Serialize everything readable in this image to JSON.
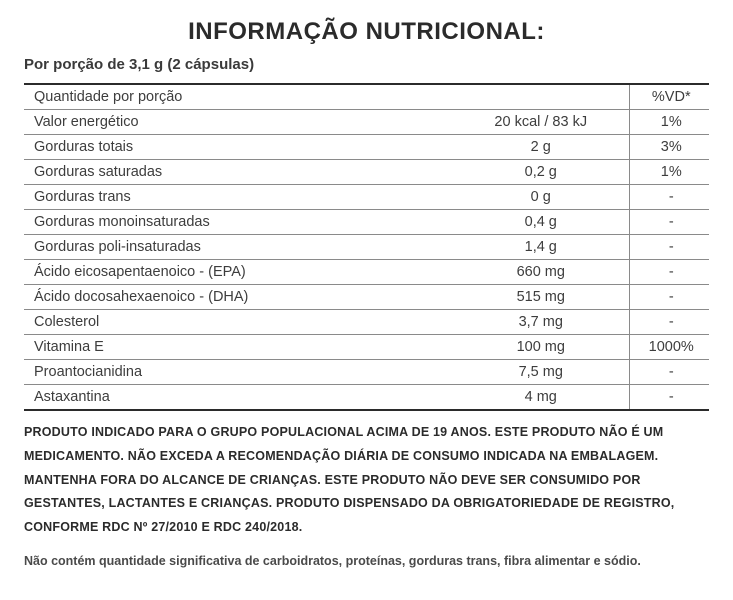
{
  "title": "INFORMAÇÃO NUTRICIONAL:",
  "serving": "Por porção de 3,1 g (2 cápsulas)",
  "table": {
    "header": {
      "label": "Quantidade por porção",
      "vd": "%VD*"
    },
    "rows": [
      {
        "label": "Valor energético",
        "value": "20 kcal / 83 kJ",
        "vd": "1%"
      },
      {
        "label": "Gorduras totais",
        "value": "2 g",
        "vd": "3%"
      },
      {
        "label": "Gorduras saturadas",
        "value": "0,2 g",
        "vd": "1%"
      },
      {
        "label": "Gorduras trans",
        "value": "0 g",
        "vd": "-"
      },
      {
        "label": "Gorduras monoinsaturadas",
        "value": "0,4 g",
        "vd": "-"
      },
      {
        "label": "Gorduras poli-insaturadas",
        "value": "1,4 g",
        "vd": "-"
      },
      {
        "label": "Ácido eicosapentaenoico - (EPA)",
        "value": "660 mg",
        "vd": "-"
      },
      {
        "label": "Ácido docosahexaenoico - (DHA)",
        "value": "515 mg",
        "vd": "-"
      },
      {
        "label": "Colesterol",
        "value": "3,7 mg",
        "vd": "-"
      },
      {
        "label": "Vitamina E",
        "value": "100 mg",
        "vd": "1000%"
      },
      {
        "label": "Proantocianidina",
        "value": "7,5 mg",
        "vd": "-"
      },
      {
        "label": "Astaxantina",
        "value": "4 mg",
        "vd": "-"
      }
    ]
  },
  "disclaimer": "PRODUTO INDICADO PARA O GRUPO POPULACIONAL ACIMA DE 19 ANOS. ESTE PRODUTO NÃO É UM MEDICAMENTO. NÃO EXCEDA A RECOMENDAÇÃO DIÁRIA DE CONSUMO INDICADA NA EMBALAGEM. MANTENHA FORA DO ALCANCE DE CRIANÇAS. ESTE PRODUTO NÃO DEVE SER CONSUMIDO POR GESTANTES, LACTANTES E CRIANÇAS. PRODUTO DISPENSADO DA OBRIGATORIEDADE DE REGISTRO, CONFORME RDC Nº 27/2010 E RDC 240/2018.",
  "footnote": "Não contém quantidade significativa de carboidratos, proteínas, gorduras trans, fibra alimentar e sódio."
}
